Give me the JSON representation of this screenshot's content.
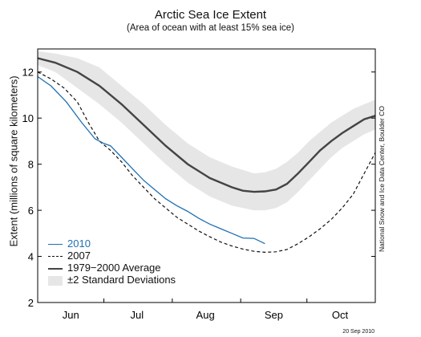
{
  "title": "Arctic Sea Ice Extent",
  "subtitle": "(Area of ocean with at least 15% sea ice)",
  "ylabel": "Extent (millions of square kilometers)",
  "credit": "National Snow and Ice Data Center, Boulder CO",
  "date_stamp": "20 Sep 2010",
  "colors": {
    "series_2010": "#1f6fb2",
    "series_2007": "#111111",
    "average": "#444444",
    "band": "#e6e6e6"
  },
  "chart_data": {
    "type": "line",
    "title": "Arctic Sea Ice Extent",
    "subtitle": "(Area of ocean with at least 15% sea ice)",
    "ylabel": "Extent (millions of square kilometers)",
    "xlabel": "",
    "x_units": "day of year",
    "xlim": [
      152,
      305
    ],
    "ylim": [
      2,
      13
    ],
    "yticks": [
      2,
      4,
      6,
      8,
      10,
      12
    ],
    "xticks": [
      {
        "label": "Jun",
        "day": 167
      },
      {
        "label": "Jul",
        "day": 197
      },
      {
        "label": "Aug",
        "day": 228
      },
      {
        "label": "Sep",
        "day": 259
      },
      {
        "label": "Oct",
        "day": 289
      }
    ],
    "grid": false,
    "legend_position": "bottom-left",
    "series": [
      {
        "name": "2010",
        "style": "solid",
        "color": "#1f6fb2",
        "points": [
          [
            152,
            11.8
          ],
          [
            158,
            11.4
          ],
          [
            165,
            10.7
          ],
          [
            172,
            9.8
          ],
          [
            178,
            9.1
          ],
          [
            182,
            8.9
          ],
          [
            185,
            8.8
          ],
          [
            190,
            8.3
          ],
          [
            195,
            7.8
          ],
          [
            200,
            7.3
          ],
          [
            205,
            6.9
          ],
          [
            210,
            6.5
          ],
          [
            215,
            6.2
          ],
          [
            220,
            5.95
          ],
          [
            225,
            5.65
          ],
          [
            230,
            5.4
          ],
          [
            235,
            5.2
          ],
          [
            240,
            5.0
          ],
          [
            245,
            4.8
          ],
          [
            250,
            4.78
          ],
          [
            255,
            4.55
          ]
        ]
      },
      {
        "name": "2007",
        "style": "dashed",
        "color": "#111111",
        "points": [
          [
            152,
            12.0
          ],
          [
            158,
            11.7
          ],
          [
            164,
            11.3
          ],
          [
            170,
            10.7
          ],
          [
            175,
            9.8
          ],
          [
            180,
            9.0
          ],
          [
            185,
            8.6
          ],
          [
            190,
            8.1
          ],
          [
            195,
            7.5
          ],
          [
            200,
            7.0
          ],
          [
            205,
            6.5
          ],
          [
            210,
            6.1
          ],
          [
            215,
            5.7
          ],
          [
            220,
            5.4
          ],
          [
            225,
            5.1
          ],
          [
            230,
            4.85
          ],
          [
            235,
            4.62
          ],
          [
            240,
            4.45
          ],
          [
            245,
            4.32
          ],
          [
            250,
            4.22
          ],
          [
            255,
            4.18
          ],
          [
            260,
            4.2
          ],
          [
            265,
            4.3
          ],
          [
            270,
            4.55
          ],
          [
            275,
            4.85
          ],
          [
            280,
            5.2
          ],
          [
            285,
            5.6
          ],
          [
            290,
            6.1
          ],
          [
            295,
            6.7
          ],
          [
            300,
            7.6
          ],
          [
            305,
            8.5
          ]
        ]
      },
      {
        "name": "1979−2000 Average",
        "style": "solid",
        "color": "#444444",
        "points": [
          [
            152,
            12.6
          ],
          [
            160,
            12.4
          ],
          [
            170,
            12.0
          ],
          [
            180,
            11.4
          ],
          [
            190,
            10.6
          ],
          [
            200,
            9.7
          ],
          [
            210,
            8.8
          ],
          [
            220,
            8.0
          ],
          [
            230,
            7.4
          ],
          [
            240,
            7.0
          ],
          [
            245,
            6.85
          ],
          [
            250,
            6.8
          ],
          [
            255,
            6.82
          ],
          [
            260,
            6.9
          ],
          [
            265,
            7.15
          ],
          [
            270,
            7.6
          ],
          [
            275,
            8.1
          ],
          [
            280,
            8.6
          ],
          [
            285,
            9.0
          ],
          [
            290,
            9.35
          ],
          [
            295,
            9.65
          ],
          [
            300,
            9.95
          ],
          [
            305,
            10.1
          ]
        ]
      },
      {
        "name": "±2 Standard Deviations",
        "style": "band",
        "color": "#e6e6e6",
        "lower": [
          [
            152,
            12.3
          ],
          [
            160,
            12.0
          ],
          [
            170,
            11.3
          ],
          [
            180,
            10.6
          ],
          [
            190,
            9.8
          ],
          [
            200,
            8.9
          ],
          [
            210,
            8.0
          ],
          [
            220,
            7.2
          ],
          [
            230,
            6.6
          ],
          [
            240,
            6.2
          ],
          [
            250,
            6.0
          ],
          [
            255,
            6.0
          ],
          [
            260,
            6.1
          ],
          [
            265,
            6.35
          ],
          [
            270,
            6.8
          ],
          [
            275,
            7.3
          ],
          [
            280,
            7.8
          ],
          [
            285,
            8.3
          ],
          [
            290,
            8.7
          ],
          [
            295,
            9.0
          ],
          [
            300,
            9.3
          ],
          [
            305,
            9.5
          ]
        ],
        "upper": [
          [
            152,
            12.9
          ],
          [
            160,
            12.8
          ],
          [
            170,
            12.6
          ],
          [
            180,
            12.2
          ],
          [
            190,
            11.4
          ],
          [
            200,
            10.6
          ],
          [
            210,
            9.7
          ],
          [
            220,
            8.9
          ],
          [
            230,
            8.3
          ],
          [
            240,
            7.9
          ],
          [
            250,
            7.6
          ],
          [
            255,
            7.65
          ],
          [
            260,
            7.8
          ],
          [
            265,
            8.1
          ],
          [
            270,
            8.5
          ],
          [
            275,
            9.0
          ],
          [
            280,
            9.4
          ],
          [
            285,
            9.8
          ],
          [
            290,
            10.1
          ],
          [
            295,
            10.4
          ],
          [
            300,
            10.6
          ],
          [
            305,
            10.8
          ]
        ]
      }
    ]
  }
}
